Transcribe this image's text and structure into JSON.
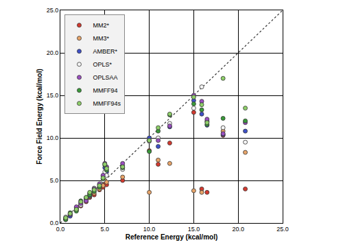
{
  "chart_data": {
    "type": "scatter",
    "marker": "circle",
    "x_label": "Reference Energy (kcal/mol)",
    "y_label": "Force Field Energy (kcal/mol)",
    "xlim": [
      0,
      25
    ],
    "ylim": [
      0,
      25
    ],
    "xticks": [
      {
        "value": 0,
        "label": "0.0"
      },
      {
        "value": 5,
        "label": "5.0"
      },
      {
        "value": 10,
        "label": "10.0"
      },
      {
        "value": 15,
        "label": "15.0"
      },
      {
        "value": 20,
        "label": "20.0"
      },
      {
        "value": 25,
        "label": "25.0"
      }
    ],
    "yticks": [
      {
        "value": 0,
        "label": "0.0"
      },
      {
        "value": 5,
        "label": "5.0"
      },
      {
        "value": 10,
        "label": "10.0"
      },
      {
        "value": 15,
        "label": "15.0"
      },
      {
        "value": 20,
        "label": "20.0"
      },
      {
        "value": 25,
        "label": "25.0"
      }
    ],
    "grid": true,
    "legend": "top left",
    "x": [
      0.6,
      1.1,
      1.8,
      2.3,
      2.9,
      3.3,
      3.8,
      4.4,
      4.8,
      5.0,
      5.2,
      7.0,
      10.0,
      11.0,
      12.3,
      15.0,
      15.9,
      16.5,
      18.3,
      20.8
    ],
    "series": [
      {
        "name": "MM2*",
        "color": "#d43a2f",
        "values": [
          0.4,
          0.9,
          1.5,
          2.0,
          2.5,
          3.0,
          3.3,
          3.9,
          4.2,
          4.6,
          4.5,
          5.0,
          8.5,
          6.9,
          9.4,
          13.0,
          4.0,
          3.6,
          10.3,
          4.0
        ]
      },
      {
        "name": "MM3*",
        "color": "#e8a56a",
        "values": [
          0.5,
          1.0,
          1.6,
          2.2,
          2.7,
          3.1,
          3.5,
          4.0,
          4.4,
          5.0,
          4.8,
          5.4,
          3.6,
          7.4,
          7.0,
          3.8,
          3.6,
          12.0,
          10.8,
          8.3
        ]
      },
      {
        "name": "AMBER*",
        "color": "#3e50c8",
        "values": [
          0.6,
          0.8,
          1.7,
          2.4,
          2.8,
          3.2,
          3.8,
          4.3,
          5.5,
          6.5,
          6.0,
          6.7,
          10.0,
          9.0,
          11.3,
          14.4,
          12.8,
          11.5,
          10.4,
          10.8
        ]
      },
      {
        "name": "OPLS*",
        "color": "#f4f4f4",
        "values": [
          0.7,
          1.1,
          1.8,
          2.1,
          2.9,
          3.4,
          4.1,
          4.5,
          5.0,
          6.0,
          5.6,
          6.3,
          9.6,
          10.0,
          11.7,
          13.5,
          16.0,
          11.9,
          11.2,
          9.5
        ]
      },
      {
        "name": "OPLSAA",
        "color": "#9b4fc0",
        "values": [
          0.5,
          1.0,
          1.9,
          2.3,
          2.6,
          3.5,
          4.0,
          4.6,
          5.6,
          7.0,
          6.6,
          7.0,
          9.7,
          9.7,
          11.4,
          15.0,
          14.3,
          12.2,
          10.5,
          11.8
        ]
      },
      {
        "name": "MMFF94",
        "color": "#3a9a3a",
        "values": [
          0.4,
          1.2,
          1.4,
          2.6,
          3.0,
          3.3,
          3.7,
          4.2,
          5.2,
          6.8,
          6.2,
          6.5,
          8.4,
          10.8,
          12.7,
          14.0,
          13.3,
          11.6,
          12.3,
          12.0
        ]
      },
      {
        "name": "MMFF94s",
        "color": "#8fd06a",
        "values": [
          0.6,
          1.1,
          1.6,
          2.5,
          3.0,
          3.6,
          3.9,
          4.4,
          5.3,
          6.9,
          6.4,
          6.6,
          9.7,
          11.2,
          12.8,
          14.8,
          13.9,
          11.8,
          17.0,
          13.5
        ]
      }
    ]
  }
}
